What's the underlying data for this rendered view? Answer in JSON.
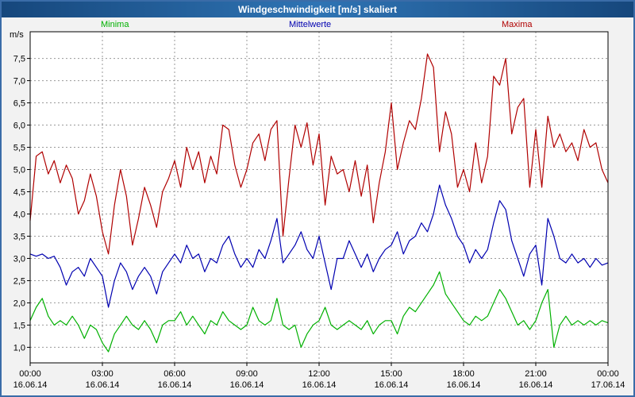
{
  "window": {
    "title": "Windgeschwindigkeit [m/s] skaliert"
  },
  "chart_data": {
    "type": "line",
    "title": "Windgeschwindigkeit [m/s] skaliert",
    "ylabel": "m/s",
    "ylim": [
      0.65,
      8.1
    ],
    "grid": true,
    "legend_position": "top",
    "sample_interval_minutes": 15,
    "legend": [
      {
        "label": "Minima",
        "color": "#00b000"
      },
      {
        "label": "Mittelwerte",
        "color": "#0000b0"
      },
      {
        "label": "Maxima",
        "color": "#b00000"
      }
    ],
    "y_ticks": [
      {
        "value": 7.5,
        "label": "7,5"
      },
      {
        "value": 7.0,
        "label": "7,0"
      },
      {
        "value": 6.5,
        "label": "6,5"
      },
      {
        "value": 6.0,
        "label": "6,0"
      },
      {
        "value": 5.5,
        "label": "5,5"
      },
      {
        "value": 5.0,
        "label": "5,0"
      },
      {
        "value": 4.5,
        "label": "4,5"
      },
      {
        "value": 4.0,
        "label": "4,0"
      },
      {
        "value": 3.5,
        "label": "3,5"
      },
      {
        "value": 3.0,
        "label": "3,0"
      },
      {
        "value": 2.5,
        "label": "2,5"
      },
      {
        "value": 2.0,
        "label": "2,0"
      },
      {
        "value": 1.5,
        "label": "1,5"
      },
      {
        "value": 1.0,
        "label": "1,0"
      }
    ],
    "x_ticks": [
      {
        "time": "00:00",
        "date": "16.06.14"
      },
      {
        "time": "03:00",
        "date": "16.06.14"
      },
      {
        "time": "06:00",
        "date": "16.06.14"
      },
      {
        "time": "09:00",
        "date": "16.06.14"
      },
      {
        "time": "12:00",
        "date": "16.06.14"
      },
      {
        "time": "15:00",
        "date": "16.06.14"
      },
      {
        "time": "18:00",
        "date": "16.06.14"
      },
      {
        "time": "21:00",
        "date": "16.06.14"
      },
      {
        "time": "00:00",
        "date": "17.06.14"
      }
    ],
    "series": [
      {
        "name": "Maxima",
        "color": "#b00000",
        "values": [
          3.85,
          5.3,
          5.4,
          4.9,
          5.2,
          4.7,
          5.1,
          4.8,
          4.0,
          4.3,
          4.9,
          4.4,
          3.6,
          3.1,
          4.2,
          5.0,
          4.4,
          3.3,
          3.9,
          4.6,
          4.2,
          3.7,
          4.5,
          4.8,
          5.2,
          4.6,
          5.5,
          5.0,
          5.4,
          4.7,
          5.3,
          4.9,
          6.0,
          5.9,
          5.1,
          4.6,
          5.0,
          5.6,
          5.8,
          5.2,
          5.9,
          6.1,
          3.5,
          4.8,
          6.0,
          5.5,
          6.05,
          5.1,
          5.8,
          4.2,
          5.3,
          4.9,
          5.0,
          4.5,
          5.2,
          4.4,
          5.1,
          3.8,
          4.7,
          5.4,
          6.5,
          5.0,
          5.6,
          6.1,
          5.9,
          6.6,
          7.6,
          7.3,
          5.4,
          6.3,
          5.8,
          4.6,
          5.0,
          4.5,
          5.6,
          4.7,
          5.3,
          7.1,
          6.9,
          7.5,
          5.8,
          6.4,
          6.6,
          4.6,
          5.9,
          4.6,
          6.2,
          5.5,
          5.8,
          5.4,
          5.6,
          5.2,
          5.9,
          5.5,
          5.6,
          5.0,
          4.7
        ]
      },
      {
        "name": "Mittelwerte",
        "color": "#0000b0",
        "values": [
          3.1,
          3.05,
          3.1,
          3.0,
          3.05,
          2.8,
          2.4,
          2.7,
          2.8,
          2.6,
          3.0,
          2.8,
          2.6,
          1.9,
          2.5,
          2.9,
          2.7,
          2.3,
          2.6,
          2.8,
          2.6,
          2.2,
          2.7,
          2.9,
          3.1,
          2.9,
          3.3,
          3.0,
          3.1,
          2.7,
          3.0,
          2.9,
          3.3,
          3.5,
          3.1,
          2.8,
          3.0,
          2.8,
          3.2,
          3.0,
          3.4,
          3.9,
          2.9,
          3.1,
          3.3,
          3.6,
          3.2,
          3.0,
          3.5,
          2.9,
          2.3,
          3.0,
          3.0,
          3.4,
          3.1,
          2.8,
          3.1,
          2.7,
          3.0,
          3.2,
          3.3,
          3.6,
          3.1,
          3.4,
          3.5,
          3.8,
          3.6,
          4.0,
          4.65,
          4.2,
          3.9,
          3.5,
          3.3,
          2.9,
          3.2,
          3.0,
          3.2,
          3.8,
          4.3,
          4.1,
          3.4,
          3.0,
          2.6,
          3.1,
          3.3,
          2.4,
          3.9,
          3.5,
          3.0,
          2.9,
          3.1,
          2.9,
          3.0,
          2.8,
          3.0,
          2.85,
          2.9
        ]
      },
      {
        "name": "Minima",
        "color": "#00b000",
        "values": [
          1.6,
          1.9,
          2.1,
          1.7,
          1.5,
          1.6,
          1.5,
          1.7,
          1.5,
          1.2,
          1.5,
          1.4,
          1.1,
          0.9,
          1.3,
          1.5,
          1.7,
          1.5,
          1.4,
          1.6,
          1.4,
          1.1,
          1.5,
          1.6,
          1.6,
          1.8,
          1.5,
          1.7,
          1.5,
          1.3,
          1.6,
          1.5,
          1.8,
          1.6,
          1.5,
          1.4,
          1.5,
          1.9,
          1.6,
          1.5,
          1.6,
          2.1,
          1.5,
          1.4,
          1.5,
          1.0,
          1.3,
          1.5,
          1.6,
          1.9,
          1.5,
          1.4,
          1.5,
          1.6,
          1.5,
          1.4,
          1.6,
          1.3,
          1.5,
          1.6,
          1.6,
          1.3,
          1.7,
          1.9,
          1.8,
          2.0,
          2.2,
          2.4,
          2.7,
          2.2,
          2.0,
          1.8,
          1.6,
          1.5,
          1.7,
          1.6,
          1.7,
          2.0,
          2.3,
          2.1,
          1.8,
          1.5,
          1.6,
          1.4,
          1.6,
          2.0,
          2.3,
          1.0,
          1.5,
          1.7,
          1.5,
          1.6,
          1.5,
          1.6,
          1.5,
          1.6,
          1.55
        ]
      }
    ]
  }
}
